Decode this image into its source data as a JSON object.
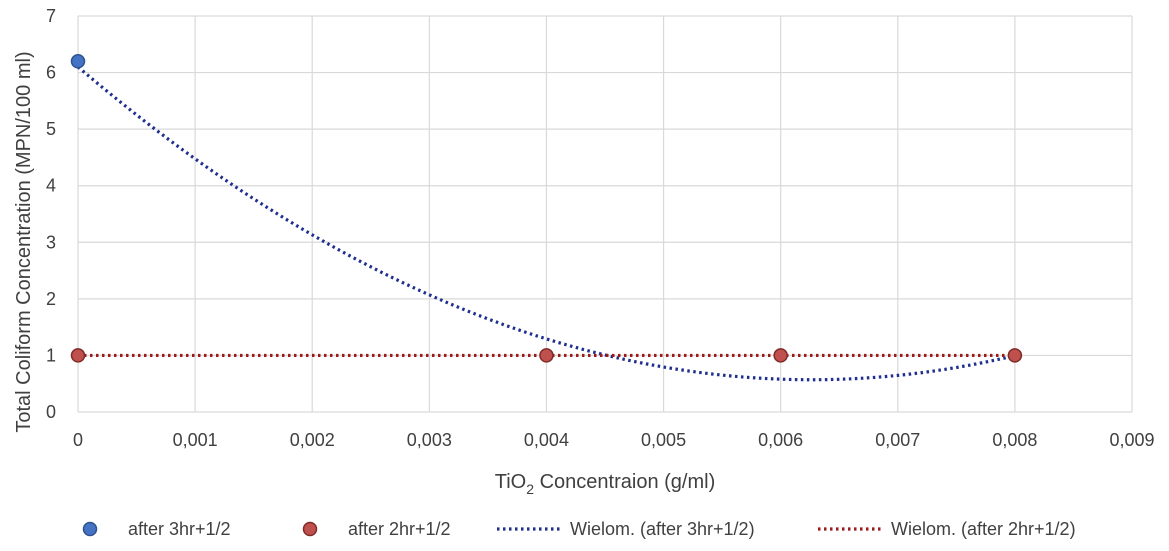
{
  "chart_data": {
    "type": "scatter",
    "xlabel": {
      "before_sub": "TiO",
      "sub": "2",
      "after_sub": " Concentraion (g/ml)"
    },
    "ylabel": "Total Coliform Concentration (MPN/100 ml)",
    "xlim": [
      0,
      0.009
    ],
    "ylim": [
      0,
      7
    ],
    "xticks": [
      0,
      0.001,
      0.002,
      0.003,
      0.004,
      0.005,
      0.006,
      0.007,
      0.008,
      0.009
    ],
    "xtick_labels": [
      "0",
      "0,001",
      "0,002",
      "0,003",
      "0,004",
      "0,005",
      "0,006",
      "0,007",
      "0,008",
      "0,009"
    ],
    "yticks": [
      0,
      1,
      2,
      3,
      4,
      5,
      6,
      7
    ],
    "ytick_labels": [
      "0",
      "1",
      "2",
      "3",
      "4",
      "5",
      "6",
      "7"
    ],
    "grid": true,
    "legend_position": "bottom",
    "series": [
      {
        "name": "after 3hr+1/2",
        "color": "#4472c4",
        "points": [
          {
            "x": 0,
            "y": 6.2
          }
        ]
      },
      {
        "name": "after 2hr+1/2",
        "color": "#c0504d",
        "points": [
          {
            "x": 0,
            "y": 1
          },
          {
            "x": 0.004,
            "y": 1
          },
          {
            "x": 0.006,
            "y": 1
          },
          {
            "x": 0.008,
            "y": 1
          }
        ]
      }
    ],
    "trendlines": [
      {
        "name": "Wielom. (after 3hr+1/2)",
        "color": "#1f2f8f",
        "type": "polynomial",
        "x_range": [
          0,
          0.008
        ],
        "coefficients": [
          6.1,
          -1766,
          141000
        ]
      },
      {
        "name": "Wielom. (after 2hr+1/2)",
        "color": "#9b1b1b",
        "type": "polynomial",
        "x_range": [
          0,
          0.008
        ],
        "coefficients": [
          1,
          0,
          0
        ]
      }
    ]
  }
}
